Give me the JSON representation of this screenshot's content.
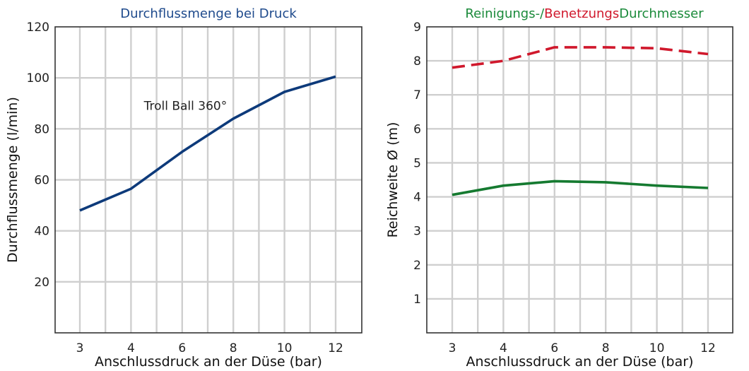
{
  "chart_data": [
    {
      "type": "line",
      "title": "Durchflussmenge bei Druck",
      "title_color": "#1e4a8c",
      "xlabel": "Anschlussdruck an der Düse (bar)",
      "ylabel": "Durchflussmenge (l/min)",
      "x_tick_labels": [
        "3",
        "4",
        "6",
        "8",
        "10",
        "12"
      ],
      "y_ticks": [
        20,
        40,
        60,
        80,
        100,
        120
      ],
      "ylim": [
        0,
        120
      ],
      "grid": true,
      "annotation": "Troll Ball 360°",
      "series": [
        {
          "color": "#0d3a7a",
          "style": "solid",
          "x": [
            "3",
            "4",
            "6",
            "8",
            "10",
            "12"
          ],
          "values": [
            48,
            56.5,
            71,
            84,
            94.5,
            100.5
          ]
        }
      ]
    },
    {
      "type": "line",
      "title_parts": [
        {
          "text": "Reinigungs-/",
          "color": "#1a8a3a"
        },
        {
          "text": "Benetzungs",
          "color": "#d0182c"
        },
        {
          "text": "Durchmesser",
          "color": "#1a8a3a"
        }
      ],
      "xlabel": "Anschlussdruck an der Düse (bar)",
      "ylabel": "Reichweite Ø (m)",
      "x_tick_labels": [
        "3",
        "4",
        "6",
        "8",
        "10",
        "12"
      ],
      "y_ticks": [
        1,
        2,
        3,
        4,
        5,
        6,
        7,
        8,
        9
      ],
      "ylim": [
        0,
        9
      ],
      "grid": true,
      "series": [
        {
          "color": "#d0182c",
          "style": "dashed",
          "x": [
            "3",
            "4",
            "6",
            "8",
            "10",
            "12"
          ],
          "values": [
            7.8,
            8.0,
            8.4,
            8.4,
            8.37,
            8.2
          ]
        },
        {
          "color": "#157a30",
          "style": "solid",
          "x": [
            "3",
            "4",
            "6",
            "8",
            "10",
            "12"
          ],
          "values": [
            4.06,
            4.33,
            4.46,
            4.43,
            4.33,
            4.26
          ]
        }
      ]
    }
  ]
}
